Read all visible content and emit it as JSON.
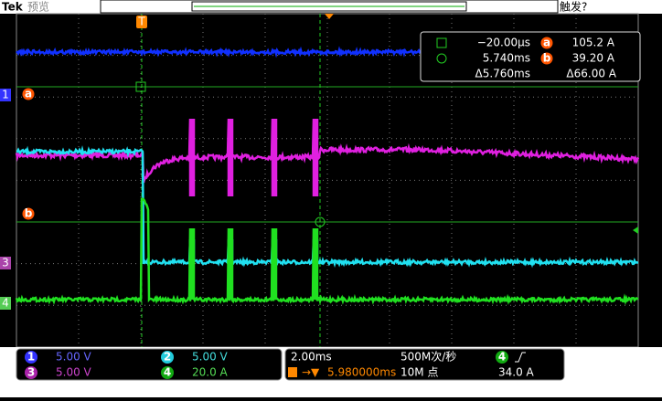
{
  "header": {
    "brand": "Tek",
    "status": "预览",
    "trigger_state": "触发?",
    "trigger_marker": "T"
  },
  "channel_markers": [
    "1",
    "3",
    "4"
  ],
  "cursors": {
    "label_a": "a",
    "label_b": "b",
    "time_a": "−20.00μs",
    "value_a": "105.2 A",
    "time_b": "5.740ms",
    "value_b": "39.20 A",
    "delta_time": "Δ5.760ms",
    "delta_value": "Δ66.00 A"
  },
  "channels": [
    {
      "id": "1",
      "scale": "5.00 V"
    },
    {
      "id": "2",
      "scale": "5.00 V"
    },
    {
      "id": "3",
      "scale": "5.00 V"
    },
    {
      "id": "4",
      "scale": "20.0 A"
    }
  ],
  "timebase": {
    "scale": "2.00ms",
    "sample_rate": "500M次/秒",
    "trigger_position": "5.980000ms",
    "record_length": "10M 点"
  },
  "trigger": {
    "source": "4",
    "level": "34.0 A"
  }
}
